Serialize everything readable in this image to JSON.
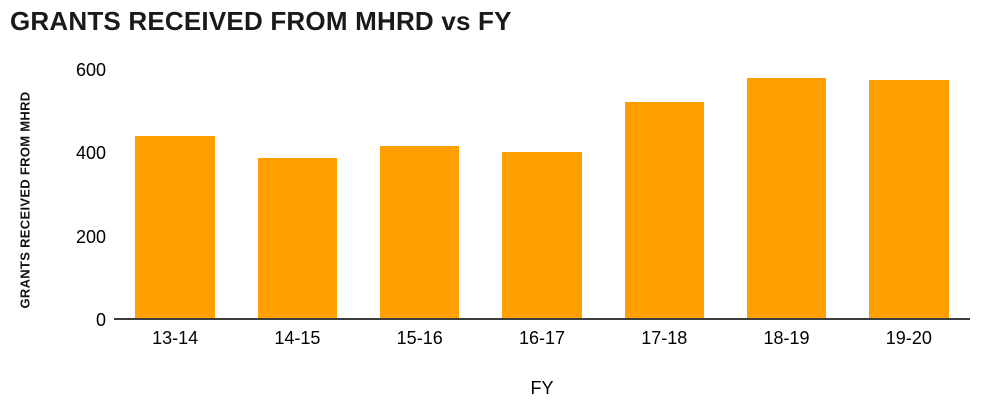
{
  "title": "GRANTS RECEIVED FROM MHRD vs FY",
  "chart_data": {
    "type": "bar",
    "title": "GRANTS RECEIVED FROM MHRD vs FY",
    "categories": [
      "13-14",
      "14-15",
      "15-16",
      "16-17",
      "17-18",
      "18-19",
      "19-20"
    ],
    "values": [
      440,
      388,
      415,
      402,
      523,
      580,
      575
    ],
    "xlabel": "FY",
    "ylabel": "GRANTS RECEIVED FROM MHRD",
    "ylim": [
      0,
      600
    ],
    "yticks": [
      0,
      200,
      400,
      600
    ],
    "grid": false,
    "legend": false,
    "bar_color": "#FFA000",
    "axis_color": "#3d3d3d"
  },
  "colors": {
    "bar": "#FFA000",
    "axis": "#3d3d3d",
    "text": "#000000",
    "background": "#ffffff"
  }
}
